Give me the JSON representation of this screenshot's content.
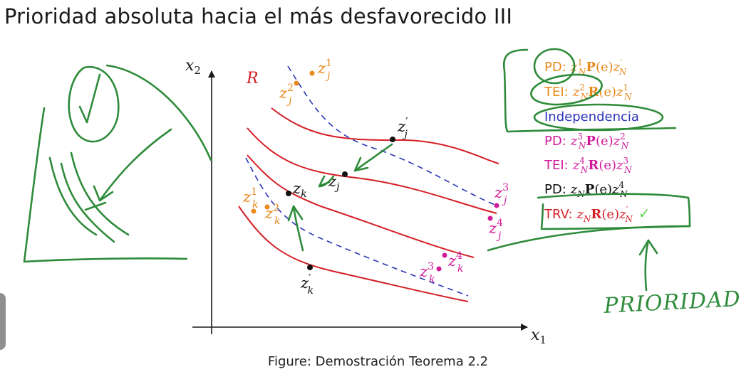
{
  "title": "Prioridad absoluta hacia el más desfavorecido III",
  "caption": "Figure: Demostración Teorema 2.2",
  "colors": {
    "curve": "#d41f26",
    "dashed": "#2a34b8",
    "orange": "#e8891c",
    "magenta": "#d11a9a",
    "annotation": "#2e8b3a",
    "check": "#5bd04a"
  },
  "axes": {
    "x_label": "x",
    "x_sub": "1",
    "y_label": "x",
    "y_sub": "2"
  },
  "curve_label": "R",
  "points": {
    "zj1": {
      "base": "z",
      "sub": "j",
      "sup": "1"
    },
    "zj2": {
      "base": "z",
      "sub": "j",
      "sup": "2"
    },
    "zjp": {
      "base": "z",
      "sub": "j",
      "sup": "′"
    },
    "zj": {
      "base": "z",
      "sub": "j"
    },
    "zj3": {
      "base": "z",
      "sub": "j",
      "sup": "3"
    },
    "zj4": {
      "base": "z",
      "sub": "j",
      "sup": "4"
    },
    "zk1": {
      "base": "z",
      "sub": "k",
      "sup": "1"
    },
    "zk2": {
      "base": "z",
      "sub": "k",
      "sup": "2"
    },
    "zk": {
      "base": "z",
      "sub": "k"
    },
    "zk3": {
      "base": "z",
      "sub": "k",
      "sup": "3"
    },
    "zk4": {
      "base": "z",
      "sub": "k",
      "sup": "4"
    },
    "zkp": {
      "base": "z",
      "sub": "k",
      "sup": "′"
    }
  },
  "steps": {
    "s1": {
      "tag": "PD:",
      "z1_sup": "1",
      "rel": "P",
      "arg": "(e)",
      "z2_sup": "′"
    },
    "s2": {
      "tag": "TEI:",
      "z1_sup": "2",
      "rel": "R",
      "arg": "(e)",
      "z2_sup": "1"
    },
    "s3": {
      "tag": "Independencia"
    },
    "s4": {
      "tag": "PD:",
      "z1_sup": "3",
      "rel": "P",
      "arg": "(e)",
      "z2_sup": "2"
    },
    "s5": {
      "tag": "TEI:",
      "z1_sup": "4",
      "rel": "R",
      "arg": "(e)",
      "z2_sup": "3"
    },
    "s6": {
      "tag": "PD:",
      "rel": "P",
      "arg": "(e)",
      "z2_sup": "4"
    },
    "s7": {
      "tag": "TRV:",
      "rel": "R",
      "arg": "(e)",
      "z2_sup": "′",
      "mark": "✓"
    }
  },
  "handwriting": "PRIORIDAD"
}
